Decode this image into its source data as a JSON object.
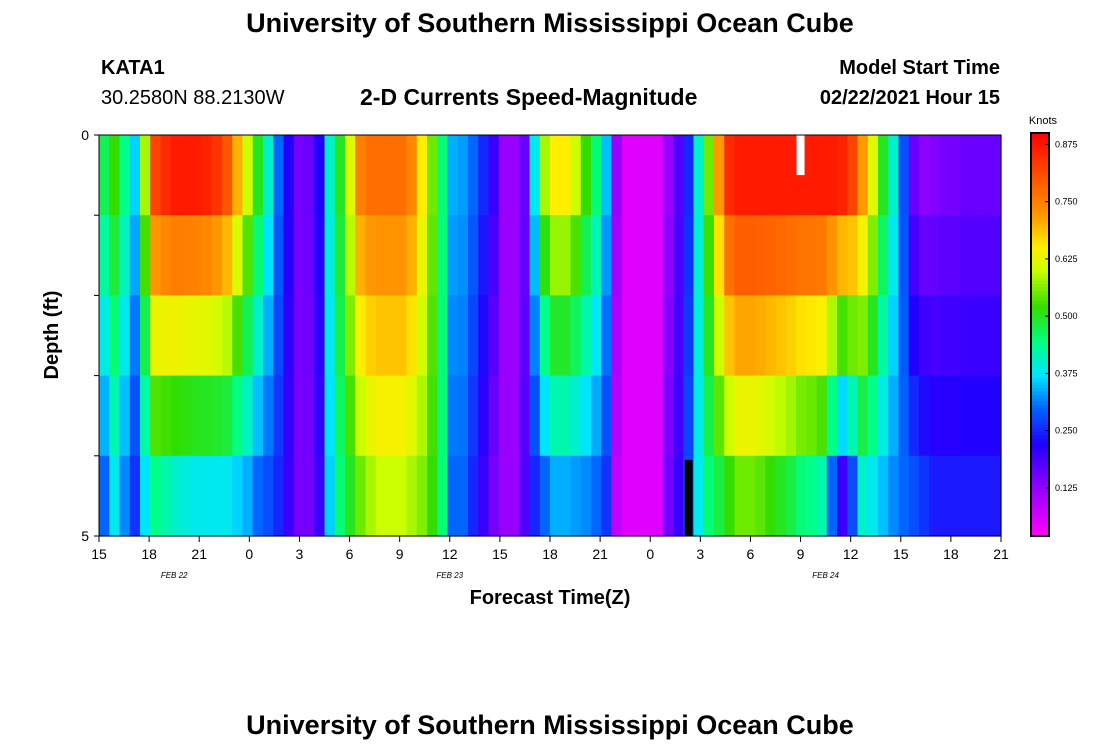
{
  "page": {
    "title_top": "University of Southern Mississippi Ocean Cube",
    "title_bottom": "University of Southern Mississippi Ocean Cube",
    "station": "KATA1",
    "coordinates": "30.2580N 88.2130W",
    "model_start_label": "Model Start Time",
    "model_start_value": "02/22/2021 Hour 15"
  },
  "chart_data": {
    "type": "heatmap",
    "title": "2-D Currents Speed-Magnitude",
    "xlabel": "Forecast Time(Z)",
    "ylabel": "Depth (ft)",
    "x_start_hour": 15,
    "x_hours": 54,
    "x_tick_labels": [
      "15",
      "18",
      "21",
      "0",
      "3",
      "6",
      "9",
      "12",
      "15",
      "18",
      "21",
      "0",
      "3",
      "6",
      "9",
      "12",
      "15",
      "18",
      "21"
    ],
    "date_labels": [
      {
        "label": "FEB 22",
        "hour": 4.5
      },
      {
        "label": "FEB 23",
        "hour": 21
      },
      {
        "label": "FEB 24",
        "hour": 43.5
      }
    ],
    "y_tick_labels": [
      "0",
      "5"
    ],
    "ylim": [
      0,
      5
    ],
    "depth_rows": 5,
    "colorbar": {
      "title": "Knots",
      "tick_labels": [
        "0.875",
        "0.750",
        "0.625",
        "0.500",
        "0.375",
        "0.250",
        "0.125"
      ],
      "tick_values": [
        0.875,
        0.75,
        0.625,
        0.5,
        0.375,
        0.25,
        0.125
      ],
      "range": [
        0.02,
        0.9
      ],
      "stops": [
        {
          "v": 0.02,
          "c": "#ff00ff"
        },
        {
          "v": 0.12,
          "c": "#9900ff"
        },
        {
          "v": 0.22,
          "c": "#2200ff"
        },
        {
          "v": 0.3,
          "c": "#0066ff"
        },
        {
          "v": 0.37,
          "c": "#00e5ff"
        },
        {
          "v": 0.44,
          "c": "#00ff88"
        },
        {
          "v": 0.52,
          "c": "#33dd00"
        },
        {
          "v": 0.6,
          "c": "#ccff00"
        },
        {
          "v": 0.65,
          "c": "#ffee00"
        },
        {
          "v": 0.72,
          "c": "#ff9900"
        },
        {
          "v": 0.8,
          "c": "#ff5500"
        },
        {
          "v": 0.9,
          "c": "#ff0000"
        }
      ]
    },
    "speed_knots": {
      "surface": [
        0.47,
        0.52,
        0.44,
        0.36,
        0.58,
        0.82,
        0.85,
        0.87,
        0.87,
        0.87,
        0.86,
        0.84,
        0.8,
        0.7,
        0.6,
        0.5,
        0.4,
        0.3,
        0.22,
        0.15,
        0.16,
        0.22,
        0.4,
        0.5,
        0.62,
        0.75,
        0.77,
        0.77,
        0.77,
        0.77,
        0.74,
        0.65,
        0.55,
        0.45,
        0.34,
        0.33,
        0.3,
        0.25,
        0.2,
        0.12,
        0.12,
        0.16,
        0.38,
        0.58,
        0.65,
        0.65,
        0.6,
        0.52,
        0.45,
        0.35,
        0.12,
        0.05,
        0.05,
        0.05,
        0.05,
        0.12,
        0.18,
        0.25,
        0.4,
        0.55,
        0.72,
        0.85,
        0.87,
        0.87,
        0.87,
        0.87,
        0.87,
        0.87,
        0.87,
        0.87,
        0.87,
        0.87,
        0.86,
        0.82,
        0.72,
        0.62,
        0.5,
        0.4,
        0.28,
        0.16,
        0.13,
        0.14,
        0.15,
        0.15,
        0.16,
        0.16,
        0.16,
        0.16
      ],
      "bottom": [
        0.3,
        0.38,
        0.32,
        0.26,
        0.37,
        0.44,
        0.42,
        0.4,
        0.39,
        0.38,
        0.38,
        0.38,
        0.38,
        0.36,
        0.34,
        0.3,
        0.28,
        0.25,
        0.2,
        0.15,
        0.15,
        0.2,
        0.36,
        0.45,
        0.5,
        0.55,
        0.58,
        0.6,
        0.6,
        0.6,
        0.58,
        0.56,
        0.52,
        0.45,
        0.3,
        0.3,
        0.25,
        0.2,
        0.15,
        0.12,
        0.12,
        0.18,
        0.25,
        0.3,
        0.34,
        0.34,
        0.33,
        0.32,
        0.3,
        0.26,
        0.08,
        0.05,
        0.05,
        0.05,
        0.05,
        0.15,
        0.2,
        0.28,
        0.38,
        0.45,
        0.48,
        0.52,
        0.55,
        0.55,
        0.54,
        0.52,
        0.5,
        0.48,
        0.45,
        0.44,
        0.42,
        0.3,
        0.2,
        0.28,
        0.4,
        0.38,
        0.35,
        0.32,
        0.3,
        0.28,
        0.26,
        0.24,
        0.24,
        0.24,
        0.24,
        0.24,
        0.24,
        0.24
      ]
    },
    "missing_markers": [
      {
        "hour": 42,
        "row": 0,
        "color": "#ffffff"
      },
      {
        "hour": 35.3,
        "row": 4,
        "color": "#000000"
      }
    ]
  }
}
